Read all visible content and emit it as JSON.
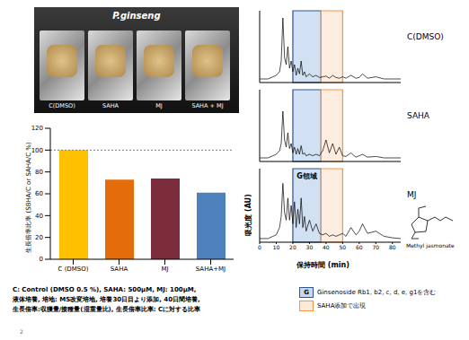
{
  "photo": {
    "title": "P.ginseng",
    "labels": [
      "C(DMSO)",
      "SAHA",
      "MJ",
      "SAHA + MJ"
    ]
  },
  "chart_data": [
    {
      "type": "bar",
      "ylabel": "生長倍率比率 (SBHA/C or SAHA/C %)",
      "categories": [
        "C (DMSO)",
        "SAHA",
        "MJ",
        "SAHA+MJ"
      ],
      "values": [
        100,
        73,
        74,
        61
      ],
      "colors": [
        "#ffc000",
        "#e46c0a",
        "#7b2c3b",
        "#4f81bd"
      ],
      "ylim": [
        0,
        120
      ],
      "yticks": [
        0,
        20,
        40,
        60,
        80,
        100,
        120
      ],
      "reference_line": 100
    },
    {
      "type": "line",
      "title": "C(DMSO)",
      "x": [
        0,
        5,
        8,
        10,
        12,
        13,
        14,
        15,
        16,
        17,
        18,
        19,
        20,
        21,
        22,
        23,
        24,
        25,
        26,
        27,
        28,
        30,
        32,
        34,
        36,
        38,
        40,
        42,
        44,
        46,
        48,
        50,
        52,
        55,
        58,
        60,
        62,
        65,
        70,
        75,
        80,
        85
      ],
      "values": [
        0.05,
        0.05,
        0.08,
        0.1,
        0.15,
        0.3,
        0.9,
        0.35,
        0.25,
        0.5,
        0.2,
        0.3,
        0.15,
        0.25,
        0.1,
        0.2,
        0.12,
        0.3,
        0.1,
        0.15,
        0.08,
        0.12,
        0.08,
        0.1,
        0.07,
        0.08,
        0.09,
        0.06,
        0.1,
        0.07,
        0.06,
        0.08,
        0.06,
        0.1,
        0.06,
        0.07,
        0.12,
        0.06,
        0.08,
        0.05,
        0.05,
        0.05
      ],
      "color": "#000000",
      "xlim": [
        0,
        85
      ],
      "xticks": [
        0,
        10,
        20,
        30,
        40,
        50,
        60,
        70,
        80
      ],
      "ylim": [
        0,
        1
      ],
      "tick_labels": false
    },
    {
      "type": "line",
      "title": "SAHA",
      "x": [
        0,
        5,
        8,
        10,
        12,
        13,
        14,
        15,
        16,
        17,
        18,
        19,
        20,
        21,
        22,
        23,
        24,
        25,
        26,
        27,
        28,
        30,
        32,
        34,
        36,
        38,
        40,
        42,
        44,
        46,
        48,
        50,
        52,
        55,
        58,
        60,
        62,
        65,
        70,
        75,
        80,
        85
      ],
      "values": [
        0.05,
        0.05,
        0.08,
        0.1,
        0.15,
        0.25,
        0.7,
        0.3,
        0.2,
        0.4,
        0.18,
        0.25,
        0.12,
        0.2,
        0.1,
        0.18,
        0.1,
        0.22,
        0.1,
        0.12,
        0.08,
        0.1,
        0.08,
        0.1,
        0.08,
        0.15,
        0.3,
        0.12,
        0.25,
        0.1,
        0.2,
        0.08,
        0.07,
        0.12,
        0.06,
        0.08,
        0.1,
        0.06,
        0.07,
        0.05,
        0.05,
        0.05
      ],
      "color": "#000000",
      "xlim": [
        0,
        85
      ],
      "xticks": [
        0,
        10,
        20,
        30,
        40,
        50,
        60,
        70,
        80
      ],
      "ylim": [
        0,
        1
      ],
      "tick_labels": false,
      "ylabel": "吸光度 (AU)"
    },
    {
      "type": "line",
      "title": "MJ",
      "annotation": "G領域",
      "structure_label": "Methyl jasmonate",
      "xlabel": "保持時間 (min)",
      "x": [
        0,
        5,
        8,
        10,
        12,
        13,
        14,
        15,
        16,
        17,
        18,
        19,
        20,
        21,
        22,
        23,
        24,
        25,
        26,
        27,
        28,
        30,
        32,
        34,
        36,
        38,
        40,
        42,
        44,
        46,
        48,
        50,
        52,
        55,
        58,
        60,
        62,
        65,
        70,
        75,
        80,
        85
      ],
      "values": [
        0.05,
        0.05,
        0.08,
        0.1,
        0.2,
        0.35,
        0.8,
        0.4,
        0.3,
        0.6,
        0.3,
        0.5,
        0.25,
        0.55,
        0.2,
        0.45,
        0.25,
        0.6,
        0.2,
        0.35,
        0.15,
        0.3,
        0.15,
        0.25,
        0.12,
        0.1,
        0.12,
        0.08,
        0.1,
        0.08,
        0.1,
        0.12,
        0.08,
        0.2,
        0.1,
        0.15,
        0.25,
        0.12,
        0.15,
        0.08,
        0.06,
        0.05
      ],
      "color": "#000000",
      "xlim": [
        0,
        85
      ],
      "xticks": [
        0,
        10,
        20,
        30,
        40,
        50,
        60,
        70,
        80
      ],
      "ylim": [
        0,
        1
      ],
      "tick_labels": "x"
    }
  ],
  "regions": [
    {
      "label": "G",
      "description": "Ginsenoside  Rb1, b2, c, d, e, g1を含む",
      "xlim": [
        20,
        37
      ],
      "color": "#c6d9f0",
      "edge_color": "#2e5597"
    },
    {
      "description": "SAHA添加で出現",
      "xlim": [
        37,
        50
      ],
      "color": "#fde9d9",
      "edge_color": "#f79646"
    }
  ],
  "caption": [
    "C: Control (DMSO 0.5 %),  SAHA: 500μM, MJ: 100μM,",
    "液体培養, 培地: MS改変培地, 培養30日目より添加, 40日間培養,",
    "生長倍率:収獲量/接種量(湿重量比), 生長倍率比率: Cに対する比率"
  ],
  "page": "2"
}
